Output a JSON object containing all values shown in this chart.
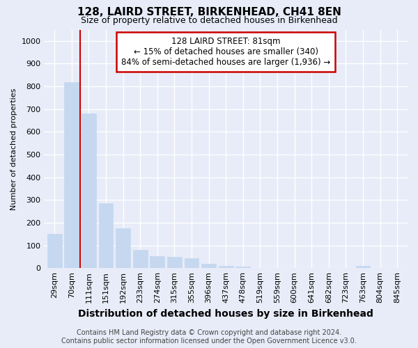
{
  "title": "128, LAIRD STREET, BIRKENHEAD, CH41 8EN",
  "subtitle": "Size of property relative to detached houses in Birkenhead",
  "xlabel": "Distribution of detached houses by size in Birkenhead",
  "ylabel": "Number of detached properties",
  "categories": [
    "29sqm",
    "70sqm",
    "111sqm",
    "151sqm",
    "192sqm",
    "233sqm",
    "274sqm",
    "315sqm",
    "355sqm",
    "396sqm",
    "437sqm",
    "478sqm",
    "519sqm",
    "559sqm",
    "600sqm",
    "641sqm",
    "682sqm",
    "723sqm",
    "763sqm",
    "804sqm",
    "845sqm"
  ],
  "values": [
    150,
    820,
    680,
    285,
    175,
    80,
    52,
    50,
    42,
    20,
    10,
    8,
    2,
    0,
    0,
    0,
    0,
    0,
    10,
    0,
    0
  ],
  "bar_color": "#c5d8f0",
  "bar_edgecolor": "#c5d8f0",
  "vline_x": 1.5,
  "vline_color": "#cc0000",
  "annotation_title": "128 LAIRD STREET: 81sqm",
  "annotation_line1": "← 15% of detached houses are smaller (340)",
  "annotation_line2": "84% of semi-detached houses are larger (1,936) →",
  "annotation_box_edgecolor": "#cc0000",
  "annotation_box_facecolor": "white",
  "ylim": [
    0,
    1050
  ],
  "yticks": [
    0,
    100,
    200,
    300,
    400,
    500,
    600,
    700,
    800,
    900,
    1000
  ],
  "footer_line1": "Contains HM Land Registry data © Crown copyright and database right 2024.",
  "footer_line2": "Contains public sector information licensed under the Open Government Licence v3.0.",
  "background_color": "#e8ecf8",
  "title_fontsize": 11,
  "subtitle_fontsize": 9,
  "xlabel_fontsize": 10,
  "ylabel_fontsize": 8,
  "tick_fontsize": 8,
  "annotation_fontsize": 8.5,
  "footer_fontsize": 7
}
